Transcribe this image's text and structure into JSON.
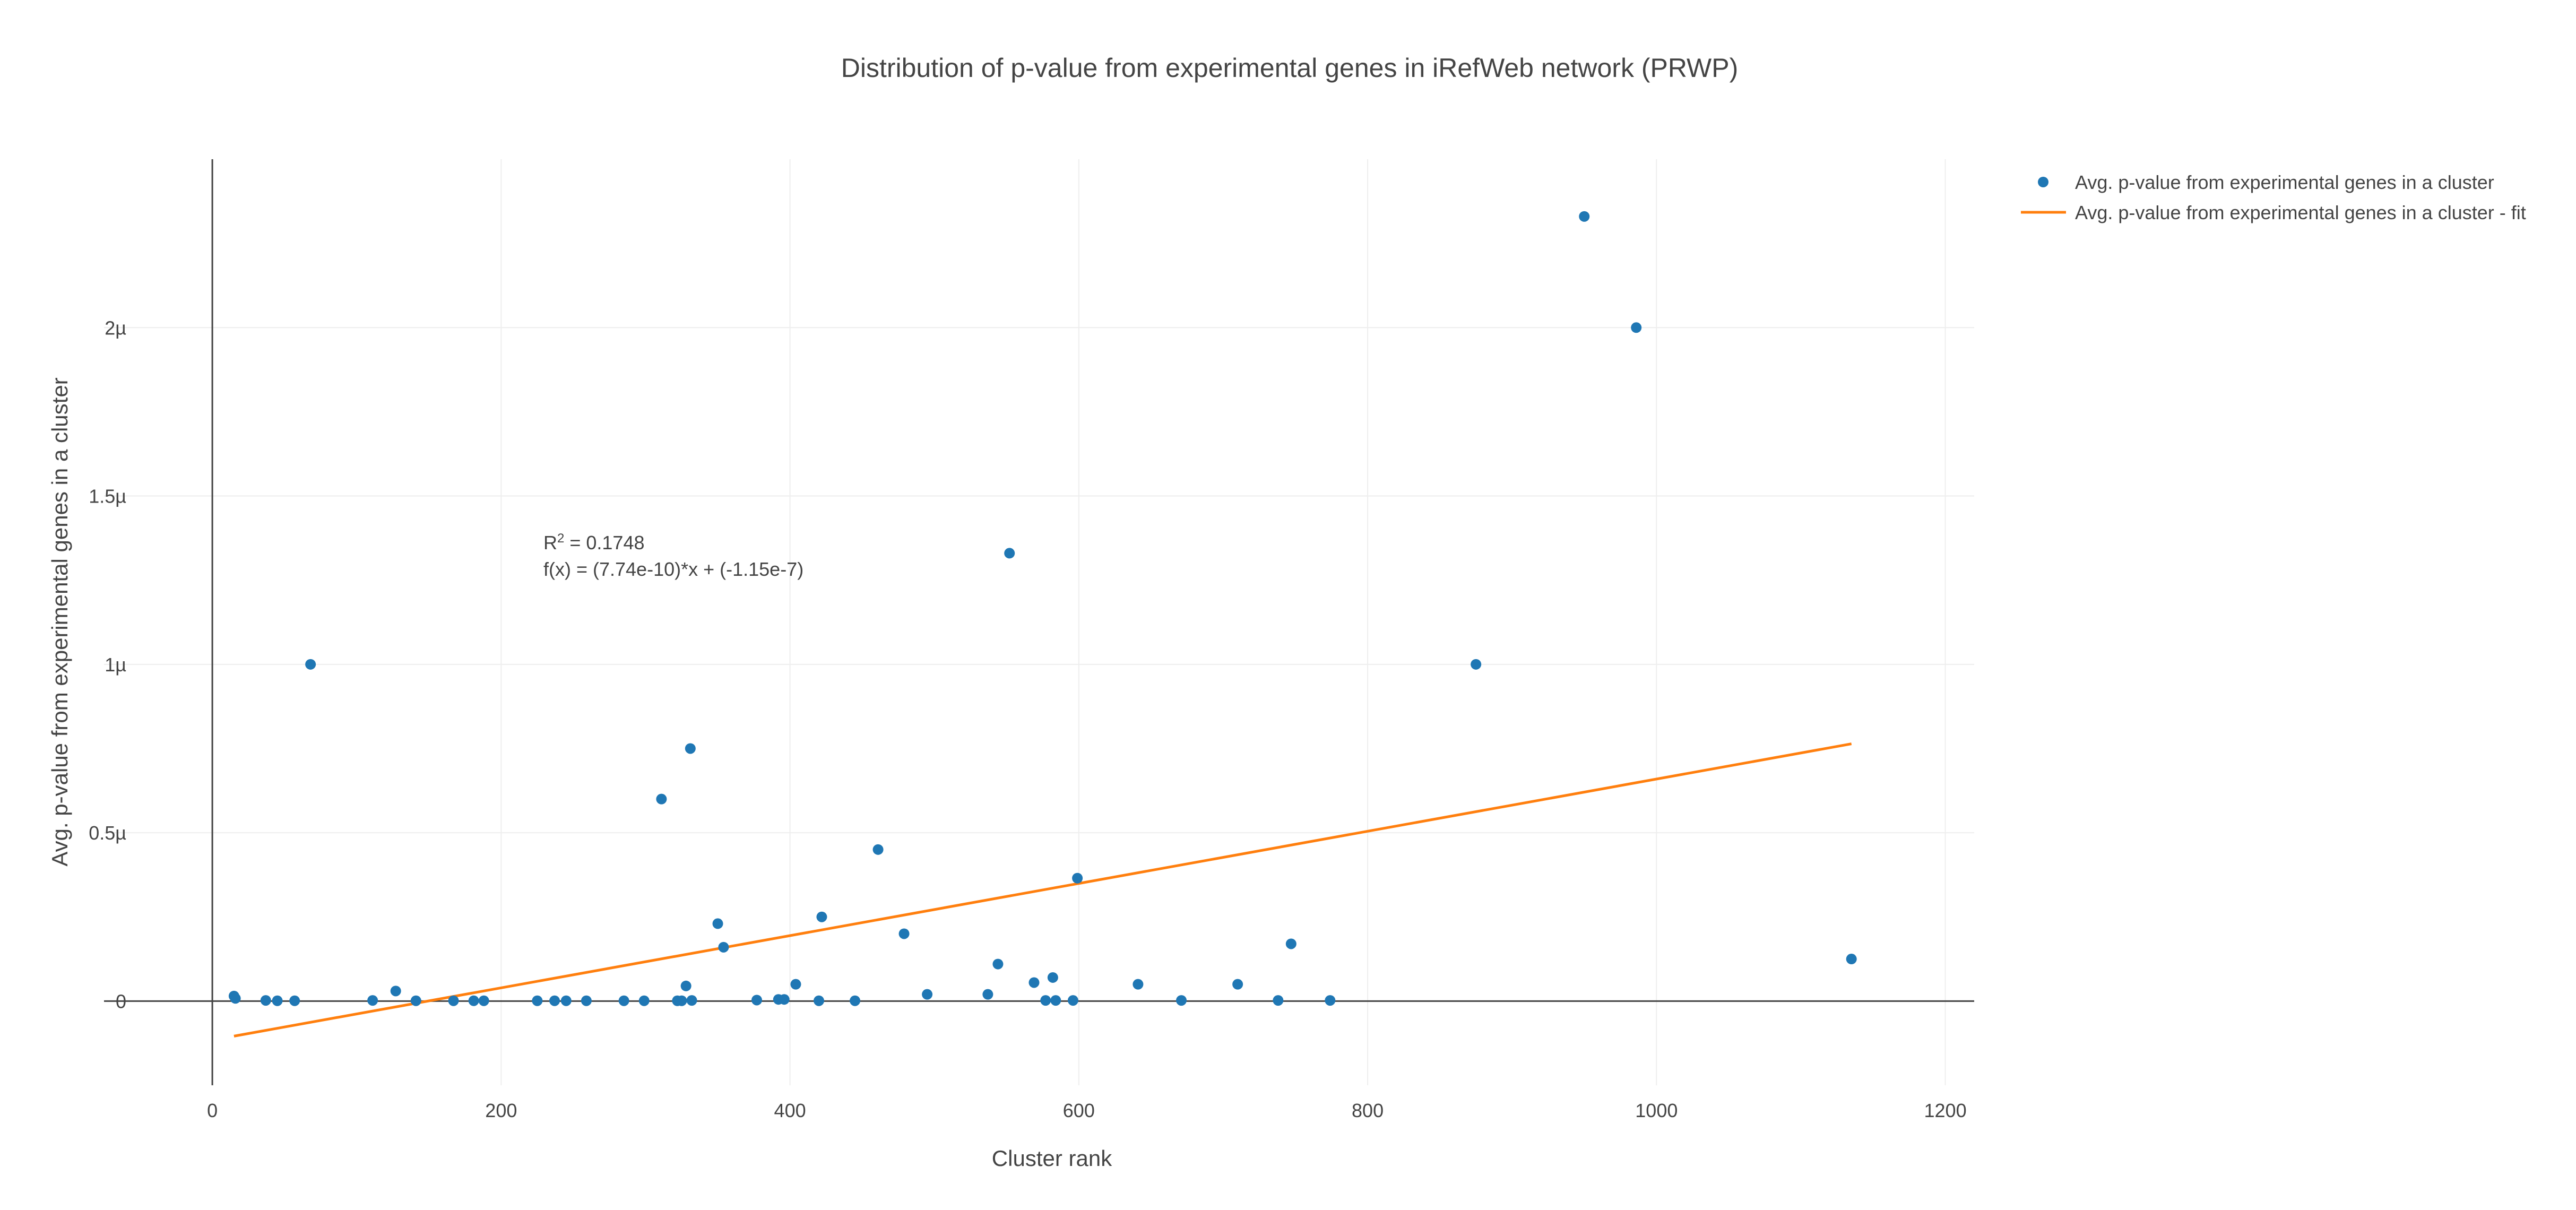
{
  "chart_data": {
    "type": "scatter",
    "title": "Distribution of p-value from experimental genes in iRefWeb network (PRWP)",
    "xlabel": "Cluster rank",
    "ylabel": "Avg. p-value from experimental genes in a cluster",
    "xlim": [
      -75,
      1220
    ],
    "ylim": [
      -2.5e-07,
      2.5e-06
    ],
    "x_ticks": [
      0,
      200,
      400,
      600,
      800,
      1000,
      1200
    ],
    "x_tick_labels": [
      "0",
      "200",
      "400",
      "600",
      "800",
      "1000",
      "1200"
    ],
    "y_ticks": [
      0,
      5e-07,
      1e-06,
      1.5e-06,
      2e-06
    ],
    "y_tick_labels": [
      "0",
      "0.5µ",
      "1µ",
      "1.5µ",
      "2µ"
    ],
    "grid": true,
    "legend_position": "top-right",
    "colors": {
      "points": "#1f77b4",
      "fit": "#ff7f0e",
      "text": "#444444",
      "grid": "#eeeeee",
      "axis": "#444444"
    },
    "series": [
      {
        "name": "Avg. p-value from experimental genes in a cluster",
        "mode": "markers",
        "x": [
          15,
          16,
          37,
          45,
          57,
          68,
          111,
          127,
          141,
          167,
          181,
          188,
          225,
          237,
          245,
          259,
          285,
          299,
          322,
          325,
          328,
          331,
          332,
          311,
          350,
          354,
          377,
          392,
          396,
          404,
          420,
          422,
          445,
          461,
          479,
          495,
          537,
          544,
          552,
          569,
          577,
          582,
          584,
          596,
          599,
          641,
          671,
          710,
          738,
          747,
          774,
          875,
          950,
          986,
          1135
        ],
        "y": [
          1.5e-08,
          8e-09,
          2e-09,
          1e-09,
          1e-09,
          1e-06,
          2e-09,
          3e-08,
          1e-09,
          1e-09,
          1e-09,
          1e-09,
          1e-09,
          1e-09,
          1e-09,
          1e-09,
          1e-09,
          1e-09,
          1e-09,
          1e-09,
          4.5e-08,
          7.5e-07,
          2e-09,
          6e-07,
          2.3e-07,
          1.6e-07,
          3e-09,
          5e-09,
          5e-09,
          5e-08,
          1e-09,
          2.5e-07,
          1e-09,
          4.5e-07,
          2e-07,
          2e-08,
          2e-08,
          1.1e-07,
          1.33e-06,
          5.5e-08,
          2e-09,
          7e-08,
          2e-09,
          2e-09,
          3.65e-07,
          5e-08,
          2e-09,
          5e-08,
          2e-09,
          1.7e-07,
          2e-09,
          1e-06,
          2.33e-06,
          2e-06,
          1.25e-07
        ]
      },
      {
        "name": "Avg. p-value from experimental genes in a cluster - fit",
        "mode": "lines",
        "x": [
          15,
          1135
        ],
        "y": [
          -1.04e-07,
          7.64e-07
        ]
      }
    ],
    "annotation": {
      "r2_prefix": "R",
      "r2_sup": "2",
      "r2_value": " = 0.1748",
      "equation": "f(x) = (7.74e-10)*x + (-1.15e-7)"
    }
  }
}
